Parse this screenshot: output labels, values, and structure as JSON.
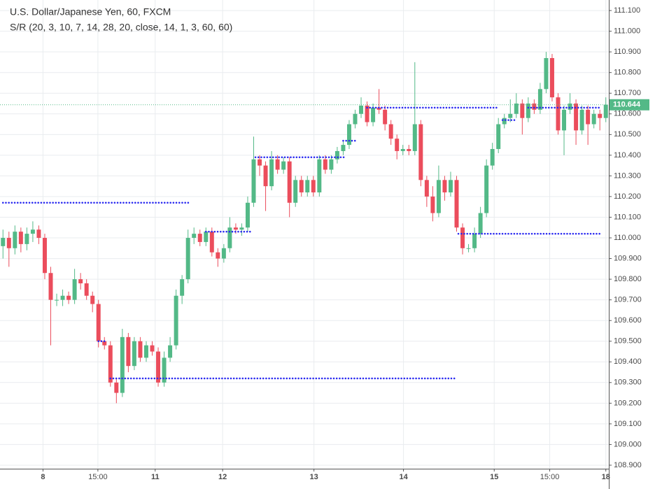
{
  "chart_data": {
    "type": "candlestick",
    "title": "U.S. Dollar/Japanese Yen, 60, FXCM",
    "subtitle": "S/R (20, 3, 10, 7, 14, 28, 20, close, 14, 1, 3, 60, 60)",
    "up_color": "#53b987",
    "down_color": "#eb4d5c",
    "level_color": "#2b2bf0",
    "grid": true,
    "xlim": [
      -0.5,
      101.5
    ],
    "xticks": [
      {
        "value": 6.7,
        "label": "8"
      },
      {
        "value": 15.9,
        "label": "15:00"
      },
      {
        "value": 25.5,
        "label": "11"
      },
      {
        "value": 36.8,
        "label": "12"
      },
      {
        "value": 52.1,
        "label": "13"
      },
      {
        "value": 67.1,
        "label": "14"
      },
      {
        "value": 82.3,
        "label": "15"
      },
      {
        "value": 91.6,
        "label": "15:00"
      },
      {
        "value": 101.0,
        "label": "18"
      }
    ],
    "ylim": [
      108.883,
      111.151
    ],
    "yticks": [
      {
        "value": 108.9,
        "label": "108.900"
      },
      {
        "value": 109.0,
        "label": "109.000"
      },
      {
        "value": 109.1,
        "label": "109.100"
      },
      {
        "value": 109.2,
        "label": "109.200"
      },
      {
        "value": 109.3,
        "label": "109.300"
      },
      {
        "value": 109.4,
        "label": "109.400"
      },
      {
        "value": 109.5,
        "label": "109.500"
      },
      {
        "value": 109.6,
        "label": "109.600"
      },
      {
        "value": 109.7,
        "label": "109.700"
      },
      {
        "value": 109.8,
        "label": "109.800"
      },
      {
        "value": 109.9,
        "label": "109.900"
      },
      {
        "value": 110.0,
        "label": "110.000"
      },
      {
        "value": 110.1,
        "label": "110.100"
      },
      {
        "value": 110.2,
        "label": "110.200"
      },
      {
        "value": 110.3,
        "label": "110.300"
      },
      {
        "value": 110.4,
        "label": "110.400"
      },
      {
        "value": 110.5,
        "label": "110.500"
      },
      {
        "value": 110.6,
        "label": "110.600"
      },
      {
        "value": 110.7,
        "label": "110.700"
      },
      {
        "value": 110.8,
        "label": "110.800"
      },
      {
        "value": 110.9,
        "label": "110.900"
      },
      {
        "value": 111.0,
        "label": "111.000"
      },
      {
        "value": 111.1,
        "label": "111.100"
      }
    ],
    "open": [
      109.96,
      110.0,
      109.95,
      110.03,
      109.97,
      110.02,
      110.04,
      110.0,
      109.83,
      109.7,
      109.7,
      109.72,
      109.7,
      109.8,
      109.78,
      109.72,
      109.68,
      109.5,
      109.48,
      109.3,
      109.25,
      109.52,
      109.38,
      109.5,
      109.42,
      109.48,
      109.45,
      109.3,
      109.42,
      109.48,
      109.72,
      109.8,
      110.0,
      110.02,
      109.98,
      110.03,
      109.93,
      109.9,
      109.95,
      110.05,
      110.04,
      110.05,
      110.17,
      110.38,
      110.35,
      110.25,
      110.38,
      110.33,
      110.37,
      110.17,
      110.28,
      110.22,
      110.28,
      110.22,
      110.38,
      110.33,
      110.38,
      110.42,
      110.45,
      110.55,
      110.6,
      110.64,
      110.56,
      110.63,
      110.62,
      110.55,
      110.48,
      110.42,
      110.43,
      110.42,
      110.55,
      110.28,
      110.2,
      110.12,
      110.28,
      110.22,
      110.28,
      110.05,
      109.95,
      109.95,
      110.02,
      110.12,
      110.35,
      110.43,
      110.55,
      110.58,
      110.6,
      110.65,
      110.58,
      110.65,
      110.62,
      110.72,
      110.87,
      110.68,
      110.52,
      110.62,
      110.65,
      110.52,
      110.62,
      110.55,
      110.6,
      110.58
    ],
    "high": [
      110.04,
      110.03,
      110.06,
      110.05,
      110.05,
      110.08,
      110.06,
      110.02,
      109.86,
      109.73,
      109.75,
      109.74,
      109.85,
      109.83,
      109.8,
      109.74,
      109.7,
      109.52,
      109.5,
      109.32,
      109.56,
      109.54,
      109.52,
      109.52,
      109.5,
      109.5,
      109.47,
      109.45,
      109.52,
      109.75,
      109.82,
      110.04,
      110.05,
      110.04,
      110.05,
      110.05,
      109.95,
      109.97,
      110.1,
      110.07,
      110.07,
      110.2,
      110.49,
      110.4,
      110.37,
      110.42,
      110.4,
      110.39,
      110.39,
      110.3,
      110.3,
      110.3,
      110.3,
      110.4,
      110.4,
      110.4,
      110.44,
      110.47,
      110.57,
      110.62,
      110.68,
      110.66,
      110.65,
      110.72,
      110.64,
      110.57,
      110.5,
      110.45,
      110.45,
      110.85,
      110.57,
      110.3,
      110.25,
      110.35,
      110.3,
      110.32,
      110.3,
      110.07,
      109.97,
      110.05,
      110.15,
      110.38,
      110.46,
      110.58,
      110.6,
      110.67,
      110.7,
      110.67,
      110.68,
      110.67,
      110.75,
      110.9,
      110.89,
      110.7,
      110.64,
      110.7,
      110.67,
      110.64,
      110.64,
      110.62,
      110.62,
      110.68
    ],
    "low": [
      109.9,
      109.86,
      109.92,
      109.93,
      109.94,
      109.98,
      109.97,
      109.8,
      109.48,
      109.67,
      109.67,
      109.68,
      109.68,
      109.75,
      109.7,
      109.64,
      109.47,
      109.46,
      109.28,
      109.2,
      109.23,
      109.35,
      109.36,
      109.4,
      109.4,
      109.43,
      109.28,
      109.28,
      109.4,
      109.46,
      109.68,
      109.78,
      109.97,
      109.96,
      109.96,
      109.91,
      109.86,
      109.88,
      109.93,
      110.02,
      110.01,
      110.03,
      110.15,
      110.3,
      110.13,
      110.23,
      110.31,
      110.31,
      110.1,
      110.15,
      110.2,
      110.2,
      110.2,
      110.2,
      110.31,
      110.31,
      110.36,
      110.4,
      110.43,
      110.53,
      110.58,
      110.54,
      110.54,
      110.6,
      110.52,
      110.45,
      110.38,
      110.4,
      110.4,
      110.4,
      110.25,
      110.15,
      110.08,
      110.1,
      110.18,
      110.2,
      110.03,
      109.92,
      109.93,
      109.93,
      110.0,
      110.1,
      110.33,
      110.41,
      110.53,
      110.56,
      110.58,
      110.5,
      110.56,
      110.6,
      110.6,
      110.7,
      110.66,
      110.5,
      110.4,
      110.6,
      110.45,
      110.5,
      110.45,
      110.53,
      110.52,
      110.56
    ],
    "close": [
      110.0,
      109.95,
      110.03,
      109.97,
      110.02,
      110.04,
      110.0,
      109.83,
      109.7,
      109.7,
      109.72,
      109.7,
      109.8,
      109.78,
      109.72,
      109.68,
      109.5,
      109.48,
      109.3,
      109.25,
      109.52,
      109.38,
      109.5,
      109.42,
      109.48,
      109.45,
      109.3,
      109.42,
      109.48,
      109.72,
      109.8,
      110.0,
      110.02,
      109.98,
      110.03,
      109.93,
      109.9,
      109.95,
      110.05,
      110.04,
      110.05,
      110.17,
      110.38,
      110.35,
      110.25,
      110.38,
      110.33,
      110.37,
      110.17,
      110.28,
      110.22,
      110.28,
      110.22,
      110.38,
      110.33,
      110.38,
      110.42,
      110.45,
      110.55,
      110.6,
      110.64,
      110.56,
      110.63,
      110.62,
      110.55,
      110.48,
      110.42,
      110.43,
      110.42,
      110.55,
      110.28,
      110.2,
      110.12,
      110.28,
      110.22,
      110.28,
      110.05,
      109.95,
      109.95,
      110.02,
      110.12,
      110.35,
      110.43,
      110.55,
      110.58,
      110.6,
      110.65,
      110.58,
      110.65,
      110.62,
      110.72,
      110.87,
      110.68,
      110.52,
      110.62,
      110.65,
      110.52,
      110.62,
      110.55,
      110.6,
      110.58,
      110.644
    ],
    "levels": [
      {
        "start": 0,
        "end": 31.2,
        "value": 110.17
      },
      {
        "start": 16,
        "end": 17.2,
        "value": 109.5
      },
      {
        "start": 18,
        "end": 75.7,
        "value": 109.32
      },
      {
        "start": 34,
        "end": 41.7,
        "value": 110.03
      },
      {
        "start": 42.3,
        "end": 57.5,
        "value": 110.39
      },
      {
        "start": 57,
        "end": 59,
        "value": 110.47
      },
      {
        "start": 61,
        "end": 82.7,
        "value": 110.63
      },
      {
        "start": 76.3,
        "end": 100.3,
        "value": 110.02
      },
      {
        "start": 83.7,
        "end": 85.7,
        "value": 110.57
      },
      {
        "start": 88,
        "end": 100.3,
        "value": 110.63
      }
    ]
  }
}
